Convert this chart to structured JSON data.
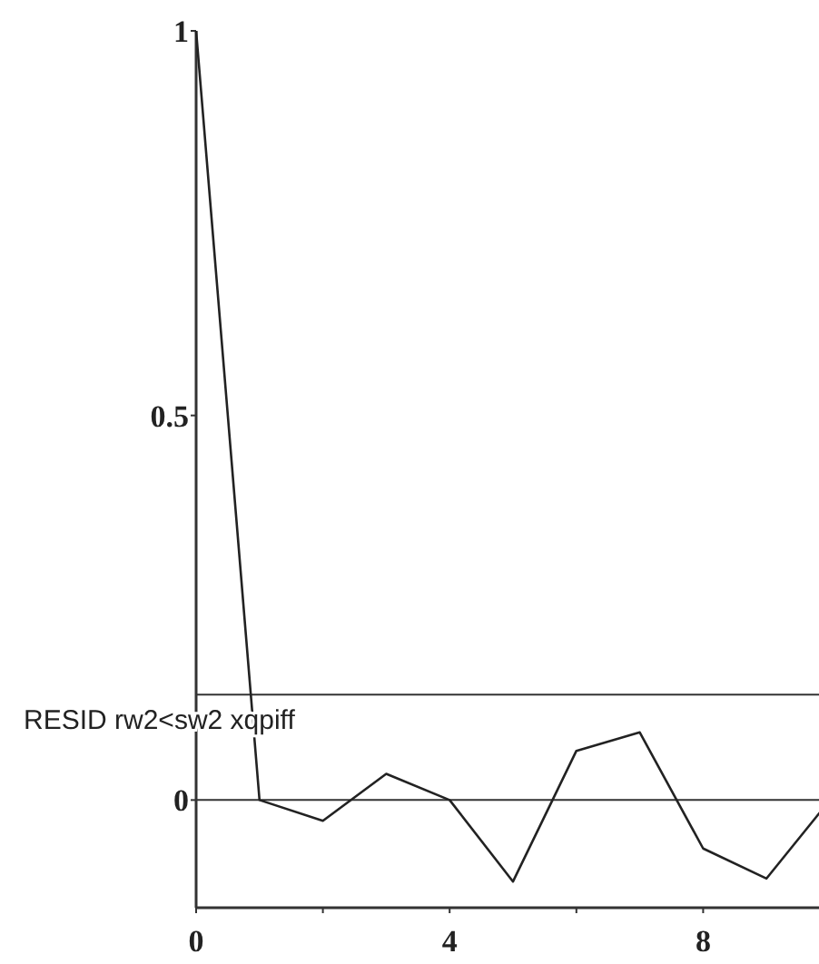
{
  "chart_data": {
    "type": "line",
    "x": [
      0,
      1,
      2,
      3,
      4,
      5,
      6,
      7,
      8,
      9,
      10
    ],
    "series": [
      {
        "color": "#222222",
        "values": [
          1,
          0.0,
          -0.027,
          0.034,
          0.0,
          -0.106,
          0.064,
          0.088,
          -0.063,
          -0.102,
          0.0
        ]
      }
    ],
    "xlim": [
      0,
      10
    ],
    "ylim": [
      -0.14,
      1
    ],
    "xticks": [
      0,
      {
        "value": 2,
        "label": null
      },
      4,
      {
        "value": 6,
        "label": null
      },
      8
    ],
    "yticks": [
      0,
      0.5,
      1
    ],
    "ref_lines": [
      {
        "axis": "y",
        "value": 0.137,
        "label": "RESID rw2<sw2 xqpiff"
      },
      {
        "axis": "y",
        "value": 0
      }
    ],
    "grid": false,
    "marker": "none",
    "line_style": "solid"
  }
}
